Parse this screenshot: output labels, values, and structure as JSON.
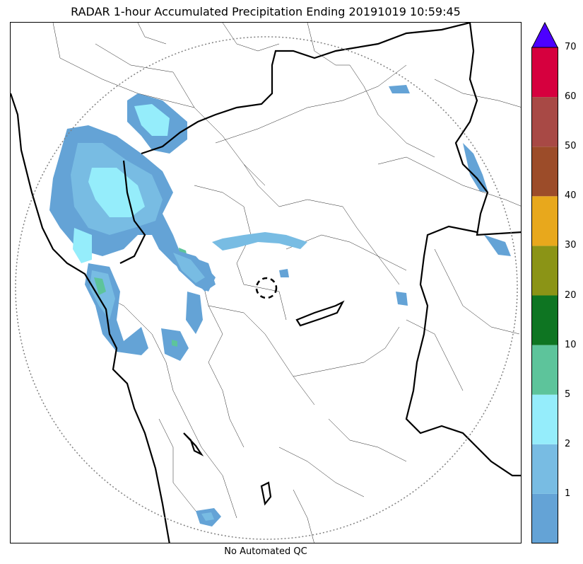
{
  "title": "RADAR 1-hour Accumulated Precipitation Ending 20191019 10:59:45",
  "footer": "No Automated QC",
  "colorbar": {
    "levels": [
      {
        "from": 0,
        "to": 1,
        "color": "#64a3d6"
      },
      {
        "from": 1,
        "to": 2,
        "color": "#78bce3"
      },
      {
        "from": 2,
        "to": 5,
        "color": "#95edfb"
      },
      {
        "from": 5,
        "to": 10,
        "color": "#5dc49b"
      },
      {
        "from": 10,
        "to": 20,
        "color": "#0e7522"
      },
      {
        "from": 20,
        "to": 30,
        "color": "#8b9416"
      },
      {
        "from": 30,
        "to": 40,
        "color": "#e8a81c"
      },
      {
        "from": 40,
        "to": 50,
        "color": "#9c4c29"
      },
      {
        "from": 50,
        "to": 60,
        "color": "#a84945"
      },
      {
        "from": 60,
        "to": 70,
        "color": "#d6003e"
      }
    ],
    "overflow_color": "#4c00ff",
    "tick_labels": [
      "1",
      "2",
      "5",
      "10",
      "20",
      "30",
      "40",
      "50",
      "60",
      "70"
    ]
  },
  "range_ring": {
    "style": "dotted",
    "color": "#808080"
  },
  "radar_site_marker": {
    "style": "dashed-circle"
  }
}
